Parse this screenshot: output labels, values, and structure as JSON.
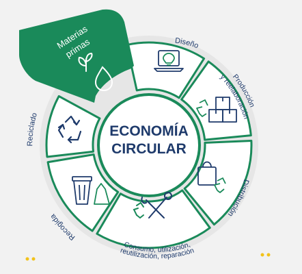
{
  "center": {
    "line1": "ECONOMÍA",
    "line2": "CIRCULAR"
  },
  "segments": [
    {
      "id": "materias-primas",
      "label_lines": [
        "Materias",
        "primas"
      ],
      "icon": "plant-drop-icon"
    },
    {
      "id": "diseno",
      "label_lines": [
        "Diseño"
      ],
      "icon": "lightbulb-laptop-icon"
    },
    {
      "id": "produccion",
      "label_lines": [
        "Producción",
        "y reelaboración"
      ],
      "icon": "boxes-recycle-icon"
    },
    {
      "id": "distribucion",
      "label_lines": [
        "Distribución"
      ],
      "icon": "shopping-bag-recycle-icon"
    },
    {
      "id": "consumo",
      "label_lines": [
        "Consumo, utilización,",
        "reutilización, reparación"
      ],
      "icon": "tools-recycle-icon"
    },
    {
      "id": "recogida",
      "label_lines": [
        "Recogida"
      ],
      "icon": "trash-bin-icon"
    },
    {
      "id": "reciclado",
      "label_lines": [
        "Reciclado"
      ],
      "icon": "recycle-icon"
    }
  ],
  "colors": {
    "green": "#1a8a5a",
    "dark_green": "#0f6e47",
    "navy": "#1e3a6b",
    "background": "#f2f2f2",
    "white": "#ffffff",
    "accent_yellow": "#f2c21a"
  }
}
